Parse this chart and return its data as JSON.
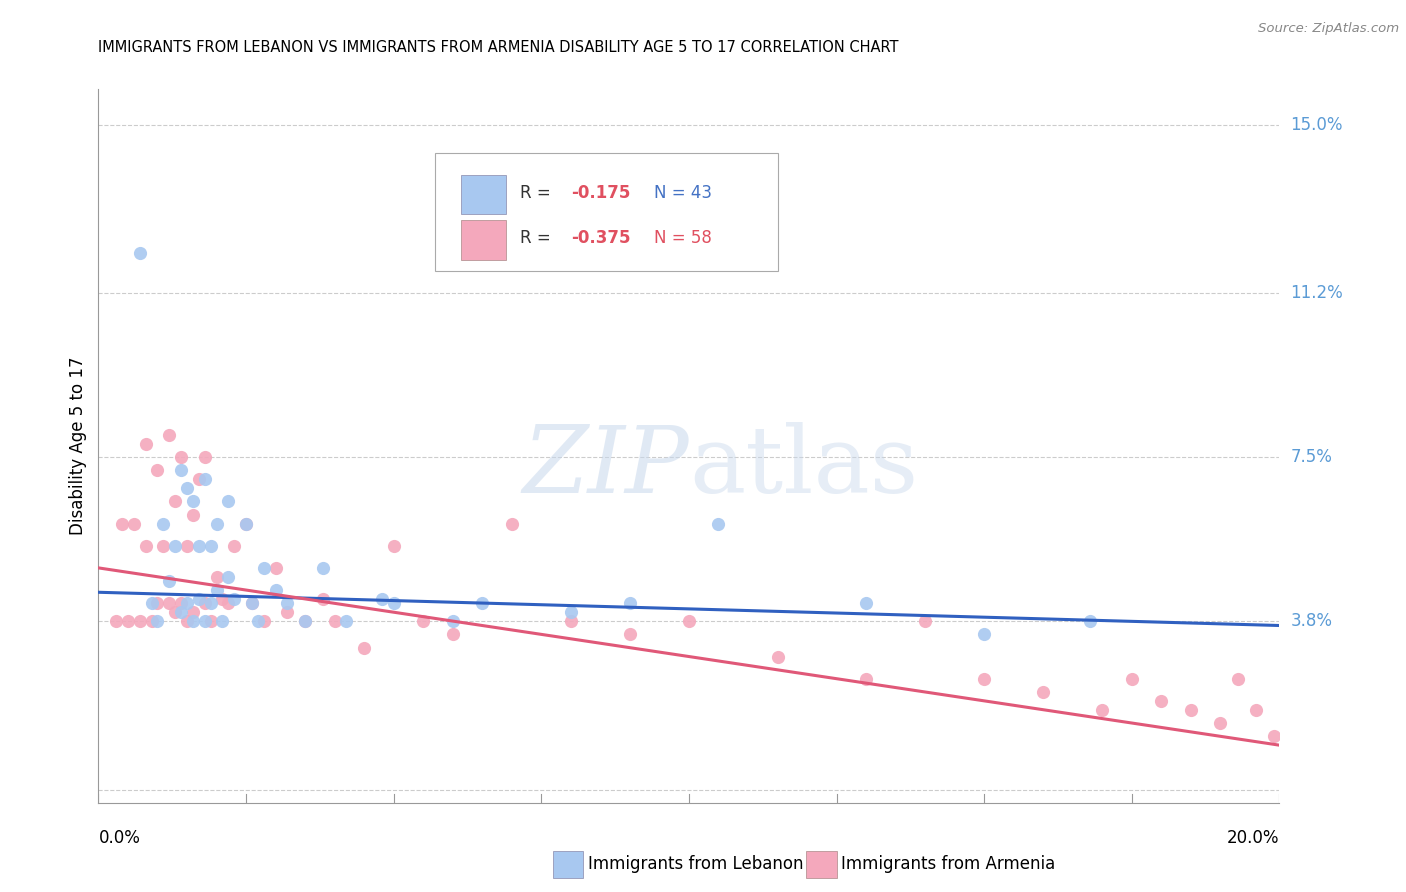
{
  "title": "IMMIGRANTS FROM LEBANON VS IMMIGRANTS FROM ARMENIA DISABILITY AGE 5 TO 17 CORRELATION CHART",
  "source": "Source: ZipAtlas.com",
  "ylabel": "Disability Age 5 to 17",
  "y_ticks": [
    0.0,
    0.038,
    0.075,
    0.112,
    0.15
  ],
  "y_tick_labels": [
    "",
    "3.8%",
    "7.5%",
    "11.2%",
    "15.0%"
  ],
  "x_range": [
    0.0,
    0.2
  ],
  "y_range": [
    -0.003,
    0.158
  ],
  "color_lebanon": "#a8c8f0",
  "color_armenia": "#f4a8bc",
  "color_line_lebanon": "#3060c0",
  "color_line_armenia": "#e05878",
  "watermark_zip": "ZIP",
  "watermark_atlas": "atlas",
  "leb_line_x0": 0.0,
  "leb_line_y0": 0.0445,
  "leb_line_x1": 0.2,
  "leb_line_y1": 0.037,
  "arm_line_x0": 0.0,
  "arm_line_y0": 0.05,
  "arm_line_x1": 0.2,
  "arm_line_y1": 0.01,
  "lebanon_x": [
    0.007,
    0.009,
    0.01,
    0.011,
    0.012,
    0.013,
    0.014,
    0.014,
    0.015,
    0.015,
    0.016,
    0.016,
    0.017,
    0.017,
    0.018,
    0.018,
    0.019,
    0.019,
    0.02,
    0.02,
    0.021,
    0.022,
    0.022,
    0.023,
    0.025,
    0.026,
    0.027,
    0.028,
    0.03,
    0.032,
    0.035,
    0.038,
    0.042,
    0.048,
    0.05,
    0.06,
    0.065,
    0.08,
    0.09,
    0.105,
    0.13,
    0.15,
    0.168
  ],
  "lebanon_y": [
    0.121,
    0.042,
    0.038,
    0.06,
    0.047,
    0.055,
    0.04,
    0.072,
    0.068,
    0.042,
    0.065,
    0.038,
    0.055,
    0.043,
    0.07,
    0.038,
    0.042,
    0.055,
    0.06,
    0.045,
    0.038,
    0.048,
    0.065,
    0.043,
    0.06,
    0.042,
    0.038,
    0.05,
    0.045,
    0.042,
    0.038,
    0.05,
    0.038,
    0.043,
    0.042,
    0.038,
    0.042,
    0.04,
    0.042,
    0.06,
    0.042,
    0.035,
    0.038
  ],
  "armenia_x": [
    0.003,
    0.004,
    0.005,
    0.006,
    0.007,
    0.008,
    0.008,
    0.009,
    0.01,
    0.01,
    0.011,
    0.012,
    0.012,
    0.013,
    0.013,
    0.014,
    0.014,
    0.015,
    0.015,
    0.016,
    0.016,
    0.017,
    0.018,
    0.018,
    0.019,
    0.02,
    0.021,
    0.022,
    0.023,
    0.025,
    0.026,
    0.028,
    0.03,
    0.032,
    0.035,
    0.038,
    0.04,
    0.045,
    0.05,
    0.055,
    0.06,
    0.07,
    0.08,
    0.09,
    0.1,
    0.115,
    0.13,
    0.14,
    0.15,
    0.16,
    0.17,
    0.175,
    0.18,
    0.185,
    0.19,
    0.193,
    0.196,
    0.199
  ],
  "armenia_y": [
    0.038,
    0.06,
    0.038,
    0.06,
    0.038,
    0.078,
    0.055,
    0.038,
    0.072,
    0.042,
    0.055,
    0.08,
    0.042,
    0.065,
    0.04,
    0.075,
    0.042,
    0.055,
    0.038,
    0.062,
    0.04,
    0.07,
    0.075,
    0.042,
    0.038,
    0.048,
    0.043,
    0.042,
    0.055,
    0.06,
    0.042,
    0.038,
    0.05,
    0.04,
    0.038,
    0.043,
    0.038,
    0.032,
    0.055,
    0.038,
    0.035,
    0.06,
    0.038,
    0.035,
    0.038,
    0.03,
    0.025,
    0.038,
    0.025,
    0.022,
    0.018,
    0.025,
    0.02,
    0.018,
    0.015,
    0.025,
    0.018,
    0.012
  ]
}
